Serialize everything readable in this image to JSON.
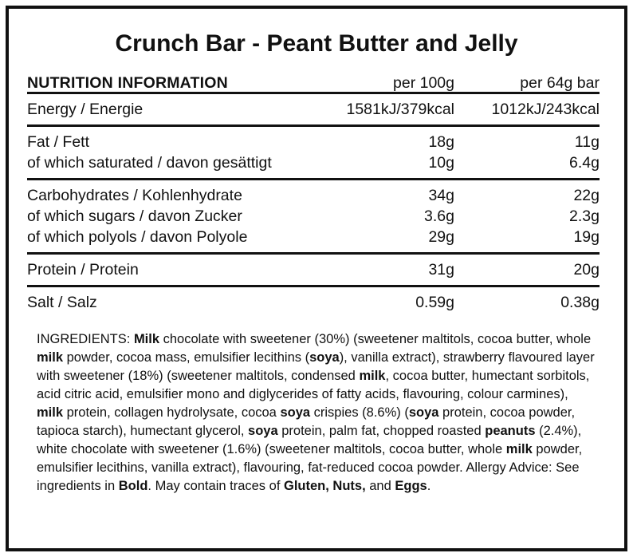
{
  "title": "Crunch Bar - Peant Butter and Jelly",
  "table": {
    "header": {
      "label": "NUTRITION INFORMATION",
      "col1": "per 100g",
      "col2": "per 64g bar"
    },
    "groups": [
      {
        "rows": [
          {
            "label": "Energy / Energie",
            "per_100g": "1581kJ/379kcal",
            "per_bar": "1012kJ/243kcal"
          }
        ]
      },
      {
        "rows": [
          {
            "label": "Fat / Fett",
            "per_100g": "18g",
            "per_bar": "11g"
          },
          {
            "label": "of which saturated / davon gesättigt",
            "per_100g": "10g",
            "per_bar": "6.4g"
          }
        ]
      },
      {
        "rows": [
          {
            "label": "Carbohydrates / Kohlenhydrate",
            "per_100g": "34g",
            "per_bar": "22g"
          },
          {
            "label": "of which sugars / davon Zucker",
            "per_100g": "3.6g",
            "per_bar": "2.3g"
          },
          {
            "label": "of which polyols / davon Polyole",
            "per_100g": "29g",
            "per_bar": "19g"
          }
        ]
      },
      {
        "rows": [
          {
            "label": "Protein / Protein",
            "per_100g": "31g",
            "per_bar": "20g"
          }
        ]
      },
      {
        "rows": [
          {
            "label": "Salt / Salz",
            "per_100g": "0.59g",
            "per_bar": "0.38g"
          }
        ]
      }
    ]
  },
  "ingredients": {
    "segments": [
      {
        "text": "INGREDIENTS: ",
        "bold": false
      },
      {
        "text": "Milk",
        "bold": true
      },
      {
        "text": " chocolate with sweetener (30%) (sweetener maltitols, cocoa butter, whole ",
        "bold": false
      },
      {
        "text": "milk",
        "bold": true
      },
      {
        "text": " powder, cocoa mass, emulsifier lecithins (",
        "bold": false
      },
      {
        "text": "soya",
        "bold": true
      },
      {
        "text": "), vanilla extract), strawberry flavoured layer with sweetener (18%) (sweetener maltitols, condensed ",
        "bold": false
      },
      {
        "text": "milk",
        "bold": true
      },
      {
        "text": ", cocoa butter, humectant sorbitols, acid citric acid, emulsifier mono and diglycerides of fatty acids, flavouring, colour carmines), ",
        "bold": false
      },
      {
        "text": "milk",
        "bold": true
      },
      {
        "text": " protein, collagen hydrolysate, cocoa ",
        "bold": false
      },
      {
        "text": "soya",
        "bold": true
      },
      {
        "text": " crispies (8.6%) (",
        "bold": false
      },
      {
        "text": "soya",
        "bold": true
      },
      {
        "text": " protein, cocoa powder, tapioca starch), humectant glycerol, ",
        "bold": false
      },
      {
        "text": "soya",
        "bold": true
      },
      {
        "text": " protein, palm fat, chopped roasted ",
        "bold": false
      },
      {
        "text": "peanuts",
        "bold": true
      },
      {
        "text": " (2.4%), white chocolate with sweetener (1.6%) (sweetener maltitols, cocoa butter, whole ",
        "bold": false
      },
      {
        "text": "milk",
        "bold": true
      },
      {
        "text": " powder, emulsifier lecithins, vanilla extract), flavouring, fat-reduced cocoa powder. Allergy Advice: See ingredients in ",
        "bold": false
      },
      {
        "text": "Bold",
        "bold": true
      },
      {
        "text": ". May contain traces of ",
        "bold": false
      },
      {
        "text": "Gluten, Nuts,",
        "bold": true
      },
      {
        "text": " and ",
        "bold": false
      },
      {
        "text": "Eggs",
        "bold": true
      },
      {
        "text": ".",
        "bold": false
      }
    ]
  },
  "colors": {
    "text": "#111111",
    "border": "#111111",
    "background": "#ffffff"
  }
}
